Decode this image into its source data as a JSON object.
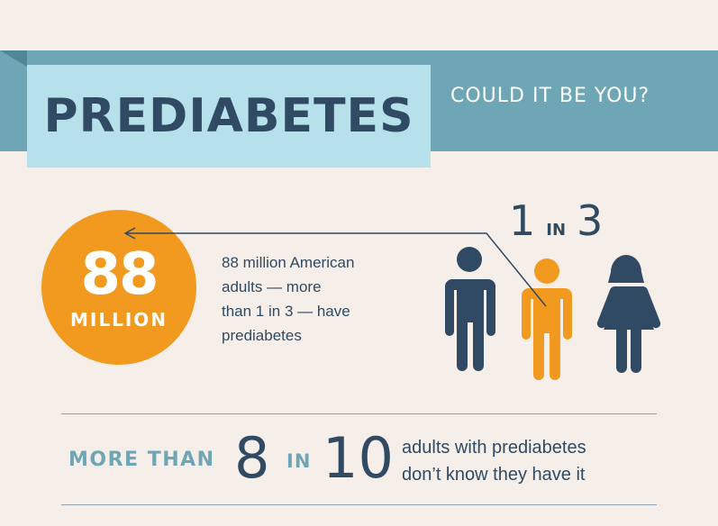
{
  "header": {
    "title": "PREDIABETES",
    "subtitle": "COULD IT BE YOU?"
  },
  "stat": {
    "number": "88",
    "unit": "MILLION",
    "description_lines": [
      "88 million American",
      "adults — more",
      "than 1 in 3 — have",
      "prediabetes"
    ]
  },
  "ratio": {
    "left": "1",
    "word": "IN",
    "right": "3"
  },
  "people": {
    "icons": [
      "man-icon",
      "child-icon",
      "woman-icon"
    ],
    "highlighted": "child-icon"
  },
  "bottom": {
    "prefix": "MORE THAN",
    "numerator": "8",
    "word": "IN",
    "denominator": "10",
    "description_lines": [
      "adults with prediabetes",
      "don’t know they have it"
    ]
  },
  "colors": {
    "background": "#f6efe9",
    "ribbon": "#6ea6b6",
    "title_box": "#b6e1ea",
    "navy": "#2f4a62",
    "orange": "#f19a1f",
    "teal_text": "#6ea6b6"
  }
}
